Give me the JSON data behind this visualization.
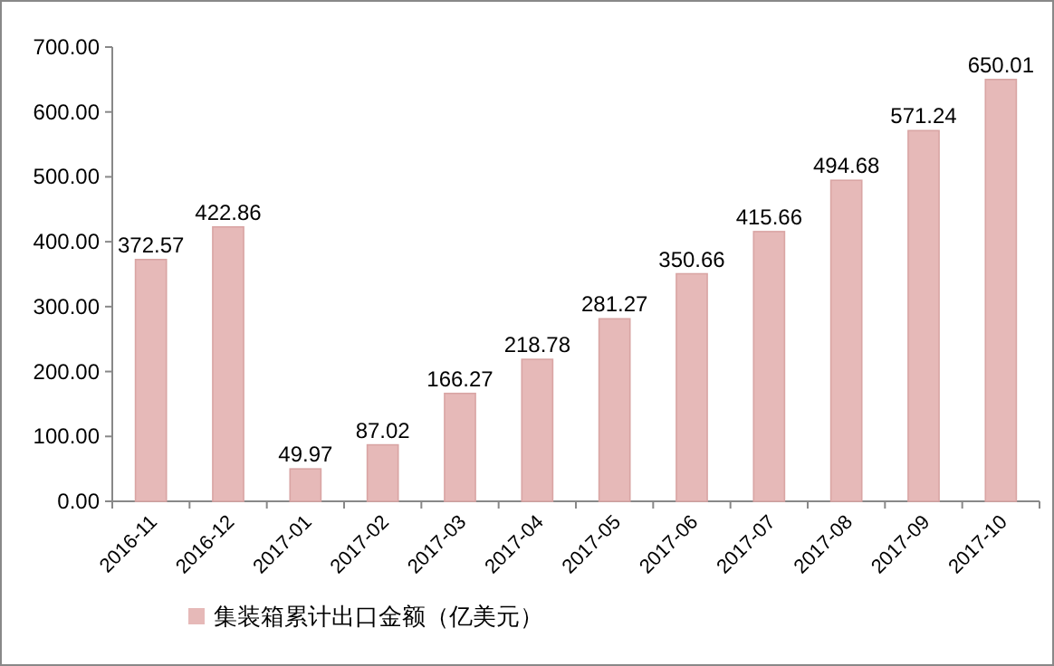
{
  "chart_data": {
    "type": "bar",
    "categories": [
      "2016-11",
      "2016-12",
      "2017-01",
      "2017-02",
      "2017-03",
      "2017-04",
      "2017-05",
      "2017-06",
      "2017-07",
      "2017-08",
      "2017-09",
      "2017-10"
    ],
    "series": [
      {
        "name": "集装箱累计出口金额（亿美元）",
        "color": "#e6b9b8",
        "values": [
          372.57,
          422.86,
          49.97,
          87.02,
          166.27,
          218.78,
          281.27,
          350.66,
          415.66,
          494.68,
          571.24,
          650.01
        ]
      }
    ],
    "ylim": [
      0,
      700
    ],
    "yticks": [
      {
        "value": 0,
        "label": "0.00"
      },
      {
        "value": 100,
        "label": "100.00"
      },
      {
        "value": 200,
        "label": "200.00"
      },
      {
        "value": 300,
        "label": "300.00"
      },
      {
        "value": 400,
        "label": "400.00"
      },
      {
        "value": 500,
        "label": "500.00"
      },
      {
        "value": 600,
        "label": "600.00"
      },
      {
        "value": 700,
        "label": "700.00"
      }
    ],
    "data_labels": true,
    "legend": "bottom"
  }
}
